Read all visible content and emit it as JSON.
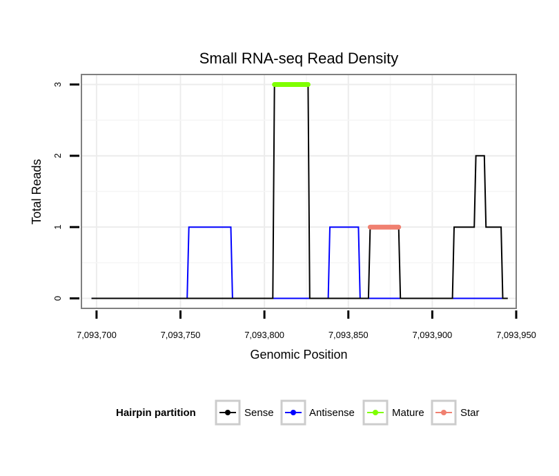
{
  "chart_data": {
    "type": "line",
    "title": "Small RNA-seq Read Density",
    "xlabel": "Genomic Position",
    "ylabel": "Total Reads",
    "xlim": [
      7093691,
      7093950
    ],
    "ylim": [
      -0.14,
      3.14
    ],
    "x_ticks": [
      7093700,
      7093750,
      7093800,
      7093850,
      7093900,
      7093950
    ],
    "x_tick_labels": [
      "7,093,700",
      "7,093,750",
      "7,093,800",
      "7,093,850",
      "7,093,900",
      "7,093,950"
    ],
    "y_ticks": [
      0,
      1,
      2,
      3
    ],
    "y_tick_labels": [
      "0",
      "1",
      "2",
      "3"
    ],
    "grid": true,
    "series": [
      {
        "name": "Sense",
        "color": "#000000",
        "kind": "line",
        "points": [
          [
            7093697,
            0
          ],
          [
            7093805,
            0
          ],
          [
            7093806,
            3
          ],
          [
            7093826,
            3
          ],
          [
            7093827,
            0
          ],
          [
            7093862,
            0
          ],
          [
            7093863,
            1
          ],
          [
            7093880,
            1
          ],
          [
            7093881,
            0
          ],
          [
            7093912,
            0
          ],
          [
            7093913,
            1
          ],
          [
            7093925,
            1
          ],
          [
            7093926,
            2
          ],
          [
            7093931,
            2
          ],
          [
            7093932,
            1
          ],
          [
            7093941,
            1
          ],
          [
            7093942,
            0
          ],
          [
            7093945,
            0
          ]
        ]
      },
      {
        "name": "Antisense",
        "color": "#0000ff",
        "kind": "line",
        "points": [
          [
            7093697,
            0
          ],
          [
            7093754,
            0
          ],
          [
            7093755,
            1
          ],
          [
            7093780,
            1
          ],
          [
            7093781,
            0
          ],
          [
            7093838,
            0
          ],
          [
            7093839,
            1
          ],
          [
            7093856,
            1
          ],
          [
            7093857,
            0
          ],
          [
            7093944,
            0
          ]
        ]
      },
      {
        "name": "Mature",
        "color": "#7fff00",
        "kind": "segment",
        "points": [
          [
            7093806,
            3
          ],
          [
            7093826,
            3
          ]
        ]
      },
      {
        "name": "Star",
        "color": "#f08070",
        "kind": "segment",
        "points": [
          [
            7093863,
            1
          ],
          [
            7093880,
            1
          ]
        ]
      }
    ],
    "legend": {
      "title": "Hairpin partition",
      "position": "bottom",
      "entries": [
        {
          "label": "Sense",
          "color": "#000000"
        },
        {
          "label": "Antisense",
          "color": "#0000ff"
        },
        {
          "label": "Mature",
          "color": "#7fff00"
        },
        {
          "label": "Star",
          "color": "#f08070"
        }
      ]
    }
  }
}
